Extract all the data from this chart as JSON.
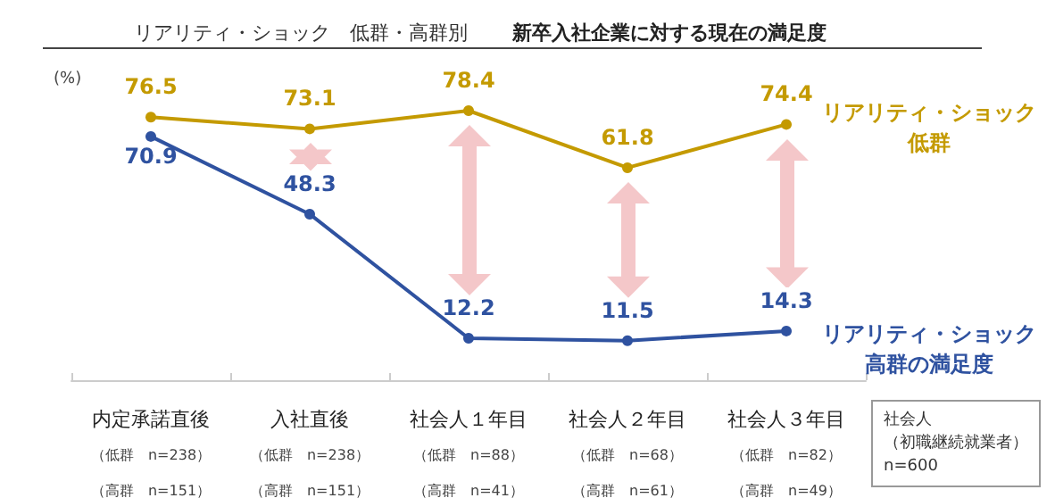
{
  "chart_data": {
    "type": "line",
    "title": "新卒入社企業に対する現在の満足度",
    "subtitle": "リアリティ・ショック　低群・高群別",
    "ylabel": "(%)",
    "categories": [
      "内定承諾直後（低群　n=238）（高群　n=151）",
      "入社直後（低群　n=238）（高群　n=151）",
      "社会人１年目（低群　n=88）（高群　n=41）",
      "社会人２年目（低群　n=68）（高群　n=61）",
      "社会人３年目（低群　n=82）（高群　n=49）"
    ],
    "series": [
      {
        "name": "リアリティ・ショック低群",
        "color": "#c49a00",
        "values": [
          76.5,
          73.1,
          78.4,
          61.8,
          74.4
        ]
      },
      {
        "name": "リアリティ・ショック高群の満足度",
        "color": "#2f52a0",
        "values": [
          70.9,
          48.3,
          12.2,
          11.5,
          14.3
        ]
      }
    ],
    "data_labels": true,
    "marker": "circle",
    "line_style": "solid",
    "legend": false,
    "grid": false,
    "annotations": [
      "社会人（初職継続就業者）n=600"
    ]
  }
}
